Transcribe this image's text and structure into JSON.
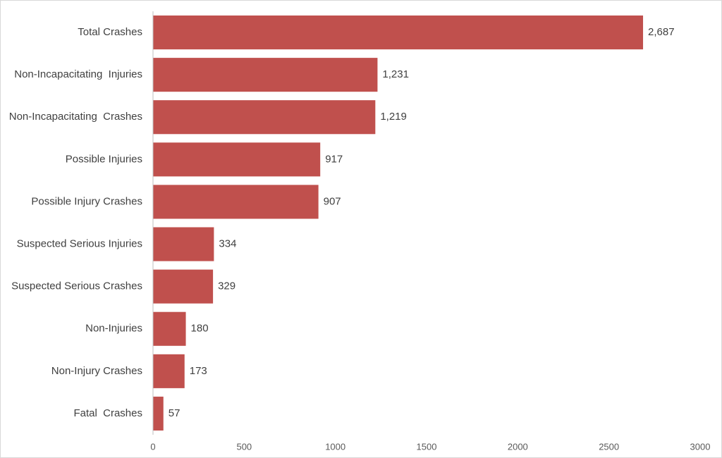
{
  "chart_data": {
    "type": "bar",
    "orientation": "horizontal",
    "categories": [
      "Total Crashes",
      "Non-Incapacitating  Injuries",
      "Non-Incapacitating  Crashes",
      "Possible Injuries",
      "Possible Injury Crashes",
      "Suspected Serious Injuries",
      "Suspected Serious Crashes",
      "Non-Injuries",
      "Non-Injury Crashes",
      "Fatal  Crashes"
    ],
    "values": [
      2687,
      1231,
      1219,
      917,
      907,
      334,
      329,
      180,
      173,
      57
    ],
    "value_labels": [
      "2,687",
      "1,231",
      "1,219",
      "917",
      "907",
      "334",
      "329",
      "180",
      "173",
      "57"
    ],
    "title": "",
    "xlabel": "",
    "ylabel": "",
    "xlim": [
      0,
      3000
    ],
    "xticks": [
      0,
      500,
      1000,
      1500,
      2000,
      2500,
      3000
    ],
    "grid": false,
    "bar_color": "#c0504d"
  }
}
